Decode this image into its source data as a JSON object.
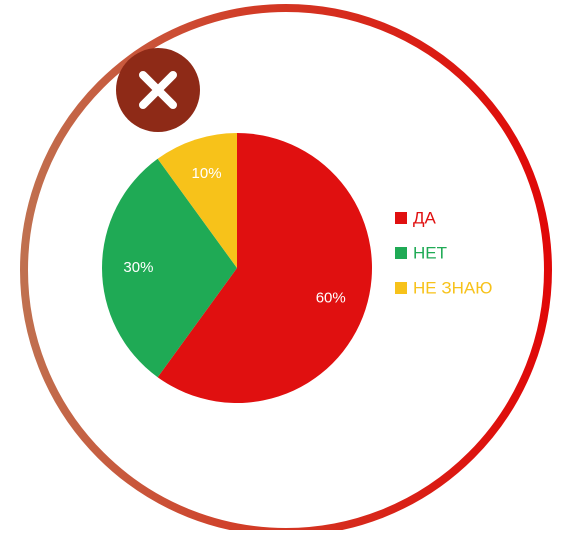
{
  "chart_data": {
    "type": "pie",
    "categories": [
      "ДА",
      "НЕТ",
      "НЕ ЗНАЮ"
    ],
    "values": [
      60,
      30,
      10
    ],
    "value_labels": [
      "60%",
      "30%",
      "10%"
    ],
    "colors": [
      "#e01010",
      "#1faa55",
      "#f7c21a"
    ],
    "legend": "right"
  }
}
